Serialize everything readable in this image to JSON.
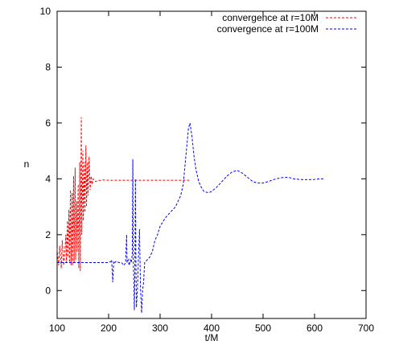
{
  "chart_data": {
    "type": "line",
    "title": "",
    "xlabel": "t/M",
    "ylabel": "n",
    "xlim": [
      100,
      700
    ],
    "ylim": [
      -1,
      10
    ],
    "xticks": [
      100,
      200,
      300,
      400,
      500,
      600,
      700
    ],
    "yticks": [
      0,
      2,
      4,
      6,
      8,
      10
    ],
    "grid": false,
    "legend_position": "top-right",
    "series": [
      {
        "name": "convergence at r=10M",
        "color": "#ff0000",
        "dash": "dashed",
        "x": [
          100,
          103,
          105,
          108,
          110,
          113,
          115,
          117,
          118,
          120,
          121,
          123,
          124,
          126,
          127,
          129,
          130,
          132,
          133,
          135,
          136,
          138,
          139,
          141,
          142,
          144,
          145,
          147,
          148,
          150,
          151,
          153,
          154,
          156,
          157,
          159,
          160,
          162,
          164,
          166,
          168,
          170,
          175,
          180,
          185,
          190,
          200,
          250,
          300,
          358
        ],
        "y": [
          1.5,
          0.9,
          1.6,
          0.8,
          1.8,
          0.9,
          1.4,
          2.0,
          1.0,
          2.5,
          1.2,
          2.9,
          1.0,
          3.6,
          0.9,
          3.5,
          0.9,
          4.1,
          1.0,
          4.4,
          1.1,
          3.2,
          1.4,
          3.8,
          0.8,
          4.6,
          0.7,
          6.2,
          2.0,
          5.0,
          2.5,
          4.6,
          2.8,
          5.2,
          3.0,
          4.6,
          3.4,
          4.8,
          3.6,
          4.1,
          3.8,
          4.0,
          3.9,
          3.95,
          3.94,
          3.96,
          3.95,
          3.95,
          3.95,
          3.95
        ]
      },
      {
        "name": "convergence at r=100M",
        "color": "#0000ff",
        "dash": "dashed",
        "x": [
          100,
          150,
          200,
          205,
          206,
          208,
          210,
          212,
          215,
          220,
          225,
          230,
          233,
          235,
          236,
          238,
          240,
          242,
          244,
          246,
          247,
          248,
          249,
          250,
          251,
          252,
          253,
          254,
          256,
          258,
          260,
          262,
          264,
          266,
          268,
          270,
          275,
          280,
          285,
          290,
          295,
          300,
          310,
          320,
          330,
          340,
          345,
          350,
          355,
          358,
          362,
          366,
          370,
          375,
          380,
          385,
          390,
          395,
          400,
          410,
          420,
          430,
          440,
          450,
          460,
          470,
          480,
          490,
          500,
          510,
          520,
          530,
          540,
          550,
          560,
          570,
          580,
          590,
          600,
          610,
          620
        ],
        "y": [
          1.0,
          1.0,
          1.0,
          1.05,
          1.1,
          0.3,
          1.05,
          1.0,
          1.05,
          1.0,
          1.0,
          0.9,
          1.0,
          2.0,
          1.0,
          1.1,
          0.9,
          1.1,
          1.0,
          1.3,
          4.7,
          1.0,
          0.2,
          -0.7,
          0.5,
          4.0,
          1.2,
          -0.6,
          0.0,
          1.2,
          2.2,
          0.0,
          -0.8,
          0.0,
          0.3,
          1.0,
          1.1,
          1.2,
          1.4,
          1.8,
          2.0,
          2.3,
          2.6,
          2.8,
          3.0,
          3.4,
          3.8,
          4.8,
          5.8,
          6.0,
          5.5,
          4.8,
          4.3,
          3.9,
          3.7,
          3.55,
          3.52,
          3.5,
          3.55,
          3.7,
          3.9,
          4.1,
          4.25,
          4.3,
          4.2,
          4.05,
          3.9,
          3.85,
          3.85,
          3.9,
          3.97,
          4.02,
          4.05,
          4.05,
          4.0,
          3.98,
          3.97,
          3.97,
          3.98,
          4.0,
          4.0
        ]
      }
    ]
  }
}
